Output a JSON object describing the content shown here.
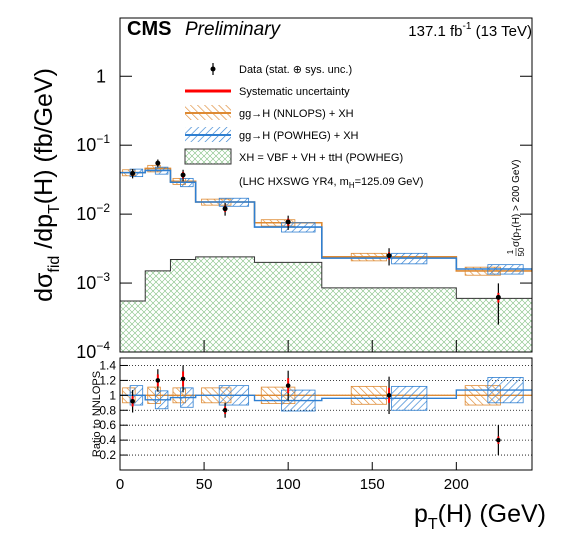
{
  "chart_data": [
    {
      "type": "hist-log",
      "header": {
        "cms": "CMS",
        "status": "Preliminary",
        "lumi": [
          "137.1 fb",
          "-1",
          " (13 TeV)"
        ]
      },
      "ylabel": [
        "dσ",
        "fid",
        " /dp",
        "T",
        "(H) (fb/GeV)"
      ],
      "ylog": true,
      "xlim": [
        0,
        245
      ],
      "ylim": [
        0.0001,
        7
      ],
      "yticks": [
        {
          "value": 0.0001,
          "label": "10",
          "exponent": "−4"
        },
        {
          "value": 0.001,
          "label": "10",
          "exponent": "−3"
        },
        {
          "value": 0.01,
          "label": "10",
          "exponent": "−2"
        },
        {
          "value": 0.1,
          "label": "10",
          "exponent": "−1"
        },
        1
      ],
      "bin_edges": [
        0,
        15,
        30,
        45,
        80,
        120,
        200,
        245
      ],
      "series": [
        {
          "name": "Data (stat. ⊕ sys. unc.)",
          "color": "#000000",
          "x": [
            7.5,
            22.5,
            37.5,
            62.5,
            100,
            160,
            225
          ],
          "values": [
            0.039,
            0.055,
            0.037,
            0.012,
            0.0077,
            0.0025,
            0.00062
          ],
          "errors": [
            0.006,
            0.007,
            0.007,
            0.0025,
            0.0018,
            0.0007,
            0.00037
          ]
        },
        {
          "name": "Systematic uncertainty",
          "color": "#ff0000",
          "values": [
            0.003,
            0.004,
            0.004,
            0.0012,
            0.0009,
            0.0003,
            0.0001
          ]
        },
        {
          "name": "gg→H (NNLOPS) + XH",
          "color": "#de8a33",
          "values": [
            0.04,
            0.046,
            0.03,
            0.015,
            0.0075,
            0.0024,
            0.0015
          ],
          "uncertainty": [
            0.004,
            0.005,
            0.003,
            0.0015,
            0.0008,
            0.0003,
            0.0002
          ]
        },
        {
          "name": "gg→H (POWHEG) + XH",
          "color": "#2f7fd1",
          "values": [
            0.04,
            0.043,
            0.029,
            0.015,
            0.0065,
            0.0023,
            0.0016
          ],
          "uncertainty": [
            0.005,
            0.005,
            0.004,
            0.002,
            0.001,
            0.0004,
            0.00025
          ]
        },
        {
          "name": "XH = VBF + VH + ttH (POWHEG)",
          "color": "#7fbf7f",
          "values": [
            0.00055,
            0.0015,
            0.0022,
            0.0024,
            0.002,
            0.00085,
            0.0006
          ]
        }
      ],
      "note": [
        "(LHC HXSWG YR4, m",
        "H",
        "=125.09 GeV)"
      ],
      "side_label": [
        "1",
        "50",
        " σ(p",
        "T",
        "(H) > 200 GeV)"
      ]
    },
    {
      "type": "ratio",
      "ylabel": "Ratio to NNLOPS",
      "xlabel": [
        "p",
        "T",
        "(H) (GeV)"
      ],
      "xlim": [
        0,
        245
      ],
      "xticks": [
        0,
        50,
        100,
        150,
        200
      ],
      "ylim": [
        0,
        1.5
      ],
      "yticks": [
        0.2,
        0.4,
        0.6,
        0.8,
        1,
        1.2,
        1.4
      ],
      "grid": true,
      "data": {
        "values": [
          0.92,
          1.2,
          1.22,
          0.8,
          1.13,
          1.0,
          0.4
        ],
        "errors": [
          0.15,
          0.15,
          0.18,
          0.1,
          0.2,
          0.25,
          0.2
        ],
        "sys_errors": [
          0.07,
          0.08,
          0.1,
          0.05,
          0.1,
          0.1,
          0.05
        ]
      },
      "nnlops": {
        "values": [
          1,
          1,
          1,
          1,
          1,
          1,
          1
        ],
        "uncertainty": [
          0.1,
          0.11,
          0.1,
          0.1,
          0.11,
          0.12,
          0.13
        ]
      },
      "powheg": {
        "values": [
          1.0,
          0.94,
          0.97,
          1.0,
          0.93,
          0.96,
          1.07
        ],
        "uncertainty": [
          0.13,
          0.12,
          0.13,
          0.13,
          0.14,
          0.16,
          0.17
        ]
      }
    }
  ]
}
